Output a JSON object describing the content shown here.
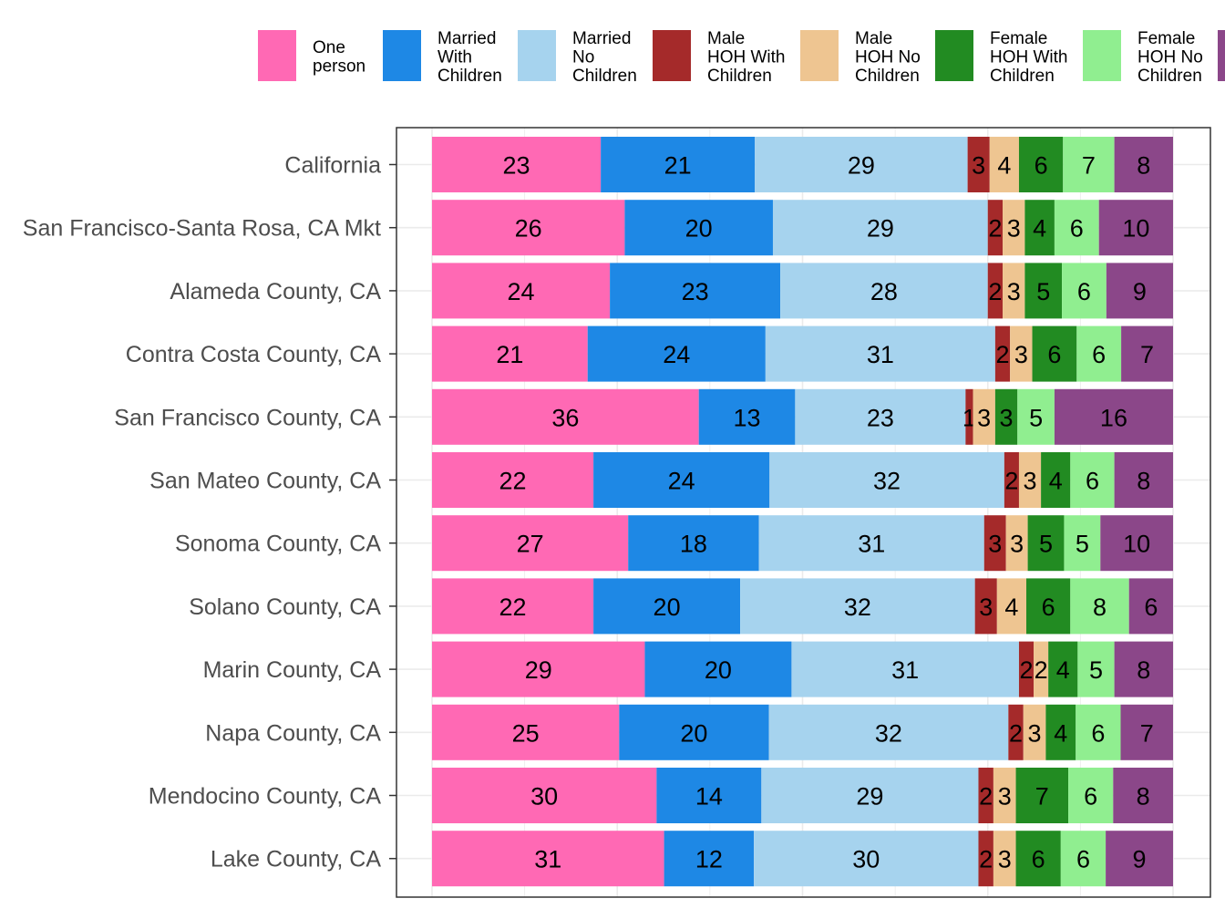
{
  "chart_data": {
    "type": "bar",
    "orientation": "horizontal",
    "stacked": true,
    "title": "",
    "xlabel": "",
    "ylabel": "",
    "legend_position": "top",
    "grid": true,
    "categories": [
      "California",
      "San Francisco-Santa Rosa, CA Mkt",
      "Alameda County, CA",
      "Contra Costa County, CA",
      "San Francisco County, CA",
      "San Mateo County, CA",
      "Sonoma County, CA",
      "Solano County, CA",
      "Marin County, CA",
      "Napa County, CA",
      "Mendocino County, CA",
      "Lake County, CA"
    ],
    "series": [
      {
        "name": "One person",
        "legend_lines": [
          "One",
          "person"
        ],
        "color": "#FF69B4",
        "values": [
          23,
          26,
          24,
          21,
          36,
          22,
          27,
          22,
          29,
          25,
          30,
          31
        ]
      },
      {
        "name": "Married With Children",
        "legend_lines": [
          "Married",
          "With",
          "Children"
        ],
        "color": "#1E88E5",
        "values": [
          21,
          20,
          23,
          24,
          13,
          24,
          18,
          20,
          20,
          20,
          14,
          12
        ]
      },
      {
        "name": "Married No Children",
        "legend_lines": [
          "Married",
          "No",
          "Children"
        ],
        "color": "#A6D3EE",
        "values": [
          29,
          29,
          28,
          31,
          23,
          32,
          31,
          32,
          31,
          32,
          29,
          30
        ]
      },
      {
        "name": "Male HOH With Children",
        "legend_lines": [
          "Male",
          "HOH With",
          "Children"
        ],
        "color": "#A52A2A",
        "values": [
          3,
          2,
          2,
          2,
          1,
          2,
          3,
          3,
          2,
          2,
          2,
          2
        ]
      },
      {
        "name": "Male HOH No Children",
        "legend_lines": [
          "Male",
          "HOH No",
          "Children"
        ],
        "color": "#EEC591",
        "values": [
          4,
          3,
          3,
          3,
          3,
          3,
          3,
          4,
          2,
          3,
          3,
          3
        ]
      },
      {
        "name": "Female HOH With Children",
        "legend_lines": [
          "Female",
          "HOH With",
          "Children"
        ],
        "color": "#228B22",
        "values": [
          6,
          4,
          5,
          6,
          3,
          4,
          5,
          6,
          4,
          4,
          7,
          6
        ]
      },
      {
        "name": "Female HOH No Children",
        "legend_lines": [
          "Female",
          "HOH No",
          "Children"
        ],
        "color": "#90EE90",
        "values": [
          7,
          6,
          6,
          6,
          5,
          6,
          5,
          8,
          5,
          6,
          6,
          6
        ]
      },
      {
        "name": "",
        "legend_lines": [],
        "color": "#8B4789",
        "values": [
          8,
          10,
          9,
          7,
          16,
          8,
          10,
          6,
          8,
          7,
          8,
          9
        ]
      }
    ],
    "colors": {
      "panel_border": "#333333",
      "gridline": "#EBEBEB",
      "tick_text": "#4d4d4d"
    }
  }
}
